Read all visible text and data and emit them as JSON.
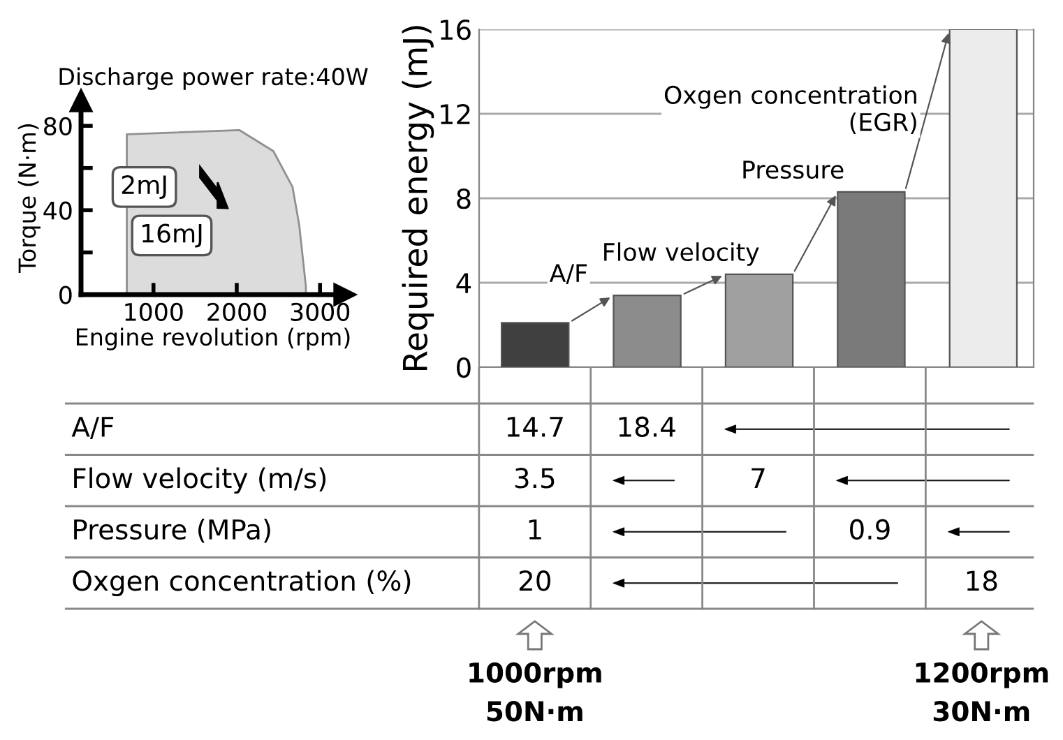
{
  "chart_data": [
    {
      "type": "area",
      "title": "Discharge power rate:40W",
      "xlabel": "Engine revolution (rpm)",
      "ylabel": "Torque (N·m)",
      "x": [
        680,
        680,
        2030,
        2440,
        2670,
        2750,
        2830,
        2830
      ],
      "values": [
        0,
        76,
        78,
        68,
        51,
        33,
        4,
        0
      ],
      "color": "#dcdcdc",
      "xlim": [
        130,
        3300
      ],
      "ylim": [
        0,
        92
      ],
      "xticks": [
        1000,
        2000,
        3000
      ],
      "yticks": [
        0,
        {
          "value": 20,
          "label": null
        },
        40,
        {
          "value": 60,
          "label": null
        },
        80
      ],
      "annotations": [
        "2mJ",
        "16mJ"
      ]
    },
    {
      "type": "bar",
      "ylabel": "Required energy (mJ)",
      "categories": [
        null,
        null,
        null,
        null,
        null
      ],
      "values": [
        2.1,
        3.4,
        4.4,
        8.3,
        16
      ],
      "colors": [
        "#404040",
        "#8c8c8c",
        "#a0a0a0",
        "#7a7a7a",
        "#ececec"
      ],
      "ylim": [
        0,
        16
      ],
      "yticks": [
        0,
        4,
        8,
        12,
        16
      ],
      "grid": "y",
      "annotations": [
        "A/F",
        "Flow velocity",
        "Pressure",
        "Oxgen concentration\n(EGR)"
      ]
    },
    {
      "type": "other",
      "y_categories": [
        "A/F",
        "Flow velocity (m/s)",
        "Pressure (MPa)",
        "Oxgen concentration (%)"
      ],
      "cell_labels": [
        [
          "14.7",
          "18.4",
          null,
          null,
          null
        ],
        [
          "3.5",
          null,
          "7",
          null,
          null
        ],
        [
          "1",
          null,
          null,
          "0.9",
          null
        ],
        [
          "20",
          null,
          null,
          null,
          "18"
        ]
      ],
      "annotations": [
        "1000rpm\n50N·m",
        "1200rpm\n30N·m"
      ]
    }
  ]
}
